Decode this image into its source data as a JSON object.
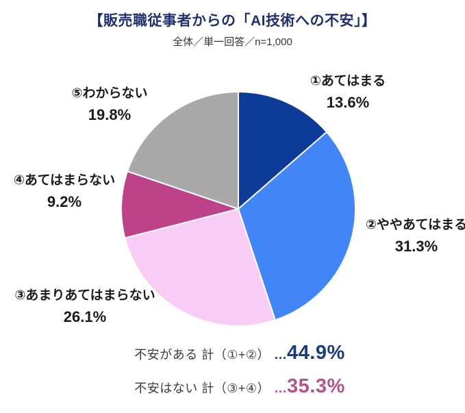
{
  "header": {
    "title": "【販売職従事者からの「AI技術への不安」】",
    "subtitle": "全体／単一回答／n=1,000"
  },
  "chart_data": {
    "type": "pie",
    "title": "販売職従事者からの「AI技術への不安」",
    "sample_note": "全体／単一回答／n=1,000",
    "start_angle_deg": 0,
    "direction": "clockwise",
    "slices": [
      {
        "label": "①あてはまる",
        "value": 13.6,
        "value_text": "13.6%",
        "color": "#0D3B99"
      },
      {
        "label": "②ややあてはまる",
        "value": 31.3,
        "value_text": "31.3%",
        "color": "#4285F7"
      },
      {
        "label": "③あまりあてはまらない",
        "value": 26.1,
        "value_text": "26.1%",
        "color": "#F9CCF6"
      },
      {
        "label": "④あてはまらない",
        "value": 9.2,
        "value_text": "9.2%",
        "color": "#BE4287"
      },
      {
        "label": "⑤わからない",
        "value": 19.8,
        "value_text": "19.8%",
        "color": "#A9A9A9"
      }
    ]
  },
  "summary": {
    "line1": {
      "label": "不安がある 計（①+②）",
      "ellipsis": "…",
      "value": "44.9%",
      "color": "#1B3C80"
    },
    "line2": {
      "label": "不安はない 計（③+④）",
      "ellipsis": "…",
      "value": "35.3%",
      "color": "#B4528C"
    }
  }
}
